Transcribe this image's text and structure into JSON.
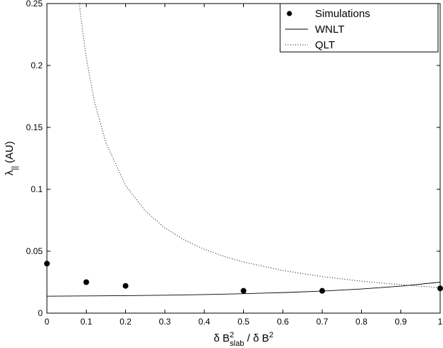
{
  "chart_data": {
    "type": "scatter",
    "xlabel": {
      "main": "δ B",
      "sup": "2",
      "sub": "slab",
      "rest": " / δ B",
      "sup2": "2"
    },
    "ylabel": {
      "main": "λ",
      "sub": "||",
      "rest": " (AU)"
    },
    "xlim": [
      0,
      1
    ],
    "ylim": [
      0,
      0.25
    ],
    "xticks": [
      "0",
      "0.1",
      "0.2",
      "0.3",
      "0.4",
      "0.5",
      "0.6",
      "0.7",
      "0.8",
      "0.9",
      "1"
    ],
    "yticks": [
      "0",
      "0.05",
      "0.1",
      "0.15",
      "0.2",
      "0.25"
    ],
    "grid": false,
    "legend_position": "top-right",
    "series": [
      {
        "name": "Simulations",
        "style": "markers",
        "x": [
          0,
          0.1,
          0.2,
          0.5,
          0.7,
          1.0
        ],
        "y": [
          0.04,
          0.025,
          0.022,
          0.018,
          0.018,
          0.02
        ]
      },
      {
        "name": "WNLT",
        "style": "solid",
        "x": [
          0,
          0.1,
          0.2,
          0.3,
          0.4,
          0.5,
          0.6,
          0.7,
          0.8,
          0.9,
          1.0
        ],
        "y": [
          0.0137,
          0.0139,
          0.0141,
          0.0145,
          0.015,
          0.0157,
          0.0166,
          0.0178,
          0.0195,
          0.0218,
          0.025
        ]
      },
      {
        "name": "QLT",
        "style": "dotted",
        "x": [
          0.0825,
          0.09,
          0.1,
          0.12,
          0.15,
          0.2,
          0.25,
          0.3,
          0.35,
          0.4,
          0.45,
          0.5,
          0.6,
          0.7,
          0.8,
          0.9,
          1.0
        ],
        "y": [
          0.25,
          0.2293,
          0.2063,
          0.1719,
          0.1375,
          0.1031,
          0.0825,
          0.0688,
          0.0589,
          0.0516,
          0.0458,
          0.0413,
          0.0344,
          0.0295,
          0.0258,
          0.0229,
          0.0206
        ]
      }
    ]
  }
}
